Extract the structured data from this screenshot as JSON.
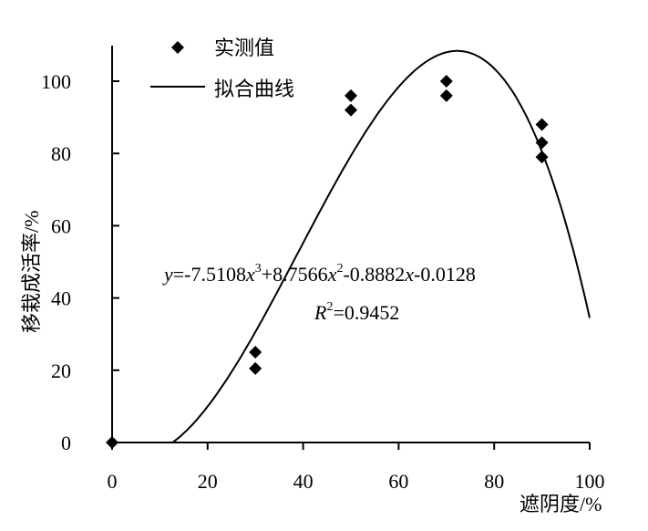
{
  "chart_data": {
    "type": "scatter",
    "xlabel": "遮阴度/%",
    "ylabel": "移栽成活率/%",
    "xlim": [
      0,
      100
    ],
    "ylim": [
      0,
      110
    ],
    "x_ticks": [
      0,
      20,
      40,
      60,
      80,
      100
    ],
    "y_ticks": [
      0,
      20,
      40,
      60,
      80,
      100
    ],
    "tick_labels": {
      "x": [
        "0",
        "20",
        "40",
        "60",
        "80",
        "100"
      ],
      "y": [
        "0",
        "20",
        "40",
        "60",
        "80",
        "100"
      ]
    },
    "legend": {
      "placement": "top-left",
      "entries": [
        {
          "label": "实测值",
          "marker": "diamond"
        },
        {
          "label": "拟合曲线",
          "marker": "line"
        }
      ]
    },
    "series": [
      {
        "name": "实测值",
        "type": "scatter",
        "points": [
          {
            "x": 0,
            "y": 0
          },
          {
            "x": 30,
            "y": 25
          },
          {
            "x": 30,
            "y": 20.5
          },
          {
            "x": 50,
            "y": 96
          },
          {
            "x": 50,
            "y": 92
          },
          {
            "x": 70,
            "y": 100
          },
          {
            "x": 70,
            "y": 96
          },
          {
            "x": 90,
            "y": 88
          },
          {
            "x": 90,
            "y": 83
          },
          {
            "x": 90,
            "y": 79
          }
        ]
      },
      {
        "name": "拟合曲线",
        "type": "line",
        "equation": {
          "a3": -7.5108,
          "a2": 8.7566,
          "a1": -0.8882,
          "a0": -0.0128
        },
        "x_range": [
          12.5,
          100
        ]
      }
    ],
    "annotations": {
      "equation_y": "y",
      "equation_rest": "=-7.5108",
      "equation_x1": "x",
      "equation_sup1": "3",
      "equation_part2": "+8.7566",
      "equation_x2": "x",
      "equation_sup2": "2",
      "equation_part3": "-0.8882",
      "equation_x3": "x",
      "equation_part4": "-0.0128",
      "r2_R": "R",
      "r2_sup": "2",
      "r2_value": "=0.9452"
    },
    "grid": false
  }
}
